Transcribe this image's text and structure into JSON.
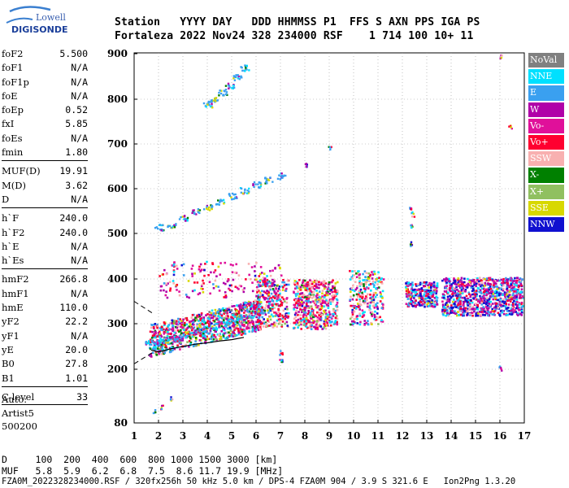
{
  "logo": {
    "top": "Lowell",
    "bottom": "DIGISONDE"
  },
  "header": {
    "line1": "Station   YYYY DAY   DDD HHMMSS P1  FFS S AXN PPS IGA PS",
    "line2": "Fortaleza 2022 Nov24 328 234000 RSF    1 714 100 10+ 11"
  },
  "params": {
    "group1": [
      {
        "name": "foF2",
        "value": "5.500"
      },
      {
        "name": "foF1",
        "value": "N/A"
      },
      {
        "name": "foF1p",
        "value": "N/A"
      },
      {
        "name": "foE",
        "value": "N/A"
      },
      {
        "name": "foEp",
        "value": "0.52"
      },
      {
        "name": "fxI",
        "value": "5.85"
      },
      {
        "name": "foEs",
        "value": "N/A"
      },
      {
        "name": "fmin",
        "value": "1.80"
      }
    ],
    "group2": [
      {
        "name": "MUF(D)",
        "value": "19.91"
      },
      {
        "name": "M(D)",
        "value": "3.62"
      },
      {
        "name": "D",
        "value": "N/A"
      }
    ],
    "group3": [
      {
        "name": "h`F",
        "value": "240.0"
      },
      {
        "name": "h`F2",
        "value": "240.0"
      },
      {
        "name": "h`E",
        "value": "N/A"
      },
      {
        "name": "h`Es",
        "value": "N/A"
      }
    ],
    "group4": [
      {
        "name": "hmF2",
        "value": "266.8"
      },
      {
        "name": "hmF1",
        "value": "N/A"
      },
      {
        "name": "hmE",
        "value": "110.0"
      },
      {
        "name": "yF2",
        "value": "22.2"
      },
      {
        "name": "yF1",
        "value": "N/A"
      },
      {
        "name": "yE",
        "value": "20.0"
      },
      {
        "name": "B0",
        "value": "27.8"
      },
      {
        "name": "B1",
        "value": "1.01"
      }
    ],
    "group5": [
      {
        "name": "C-level",
        "value": "33"
      }
    ]
  },
  "auto": {
    "label": "Auto:",
    "program": "Artist5",
    "version": "500200"
  },
  "legend": [
    {
      "label": "NoVal",
      "color": "#808080"
    },
    {
      "label": "NNE",
      "color": "#00e0ff"
    },
    {
      "label": "E",
      "color": "#3aa0f0"
    },
    {
      "label": "W",
      "color": "#b000a8"
    },
    {
      "label": "Vo-",
      "color": "#e0109a"
    },
    {
      "label": "Vo+",
      "color": "#ff0030"
    },
    {
      "label": "SSW",
      "color": "#f8b0b0"
    },
    {
      "label": "X-",
      "color": "#008000"
    },
    {
      "label": "X+",
      "color": "#90c060"
    },
    {
      "label": "SSE",
      "color": "#d8d800"
    },
    {
      "label": "NNW",
      "color": "#1010d0"
    }
  ],
  "footer": {
    "line1": "D     100  200  400  600  800 1000 1500 3000 [km]",
    "line2": "MUF   5.8  5.9  6.2  6.8  7.5  8.6 11.7 19.9 [MHz]",
    "line3": "FZA0M_2022328234000.RSF / 320fx256h 50 kHz 5.0 km / DPS-4 FZA0M 904 / 3.9 S 321.6 E   Ion2Png 1.3.20"
  },
  "chart_data": {
    "type": "scatter",
    "title": "",
    "xlabel": "",
    "ylabel": "",
    "xlim": [
      1,
      17
    ],
    "ylim": [
      80,
      900
    ],
    "x_ticks": [
      "1",
      "2",
      "3",
      "4",
      "5",
      "6",
      "7",
      "8",
      "9",
      "10",
      "11",
      "12",
      "13",
      "14",
      "15",
      "16",
      "17"
    ],
    "y_ticks": [
      "80",
      "200",
      "300",
      "400",
      "500",
      "600",
      "700",
      "800",
      "900"
    ],
    "grid": "dotted",
    "series": [
      {
        "cluster": "F-layer trace",
        "x": [
          1.6,
          1.9,
          2.2,
          2.5,
          2.8,
          3.1,
          3.4,
          3.7,
          4.0,
          4.3,
          4.6,
          4.9,
          5.2,
          5.5,
          5.8,
          6.1
        ],
        "y": [
          262,
          258,
          260,
          265,
          270,
          275,
          280,
          285,
          290,
          295,
          300,
          305,
          310,
          315,
          322,
          330
        ]
      },
      {
        "cluster": "second hop",
        "x": [
          2.0,
          2.5,
          3.0,
          3.5,
          4.0,
          4.5,
          5.0,
          5.5,
          6.0,
          6.5,
          7.0
        ],
        "y": [
          515,
          520,
          535,
          550,
          560,
          572,
          585,
          597,
          610,
          620,
          630
        ]
      },
      {
        "cluster": "third hop",
        "x": [
          4.0,
          4.3,
          4.6,
          4.9,
          5.2,
          5.5
        ],
        "y": [
          790,
          800,
          815,
          830,
          850,
          870
        ]
      }
    ],
    "profile_curve": {
      "x": [
        1.7,
        2.0,
        2.5,
        3.0,
        3.5,
        4.0,
        4.5,
        5.0,
        5.5
      ],
      "y": [
        242,
        238,
        245,
        250,
        255,
        258,
        262,
        265,
        270
      ]
    }
  }
}
